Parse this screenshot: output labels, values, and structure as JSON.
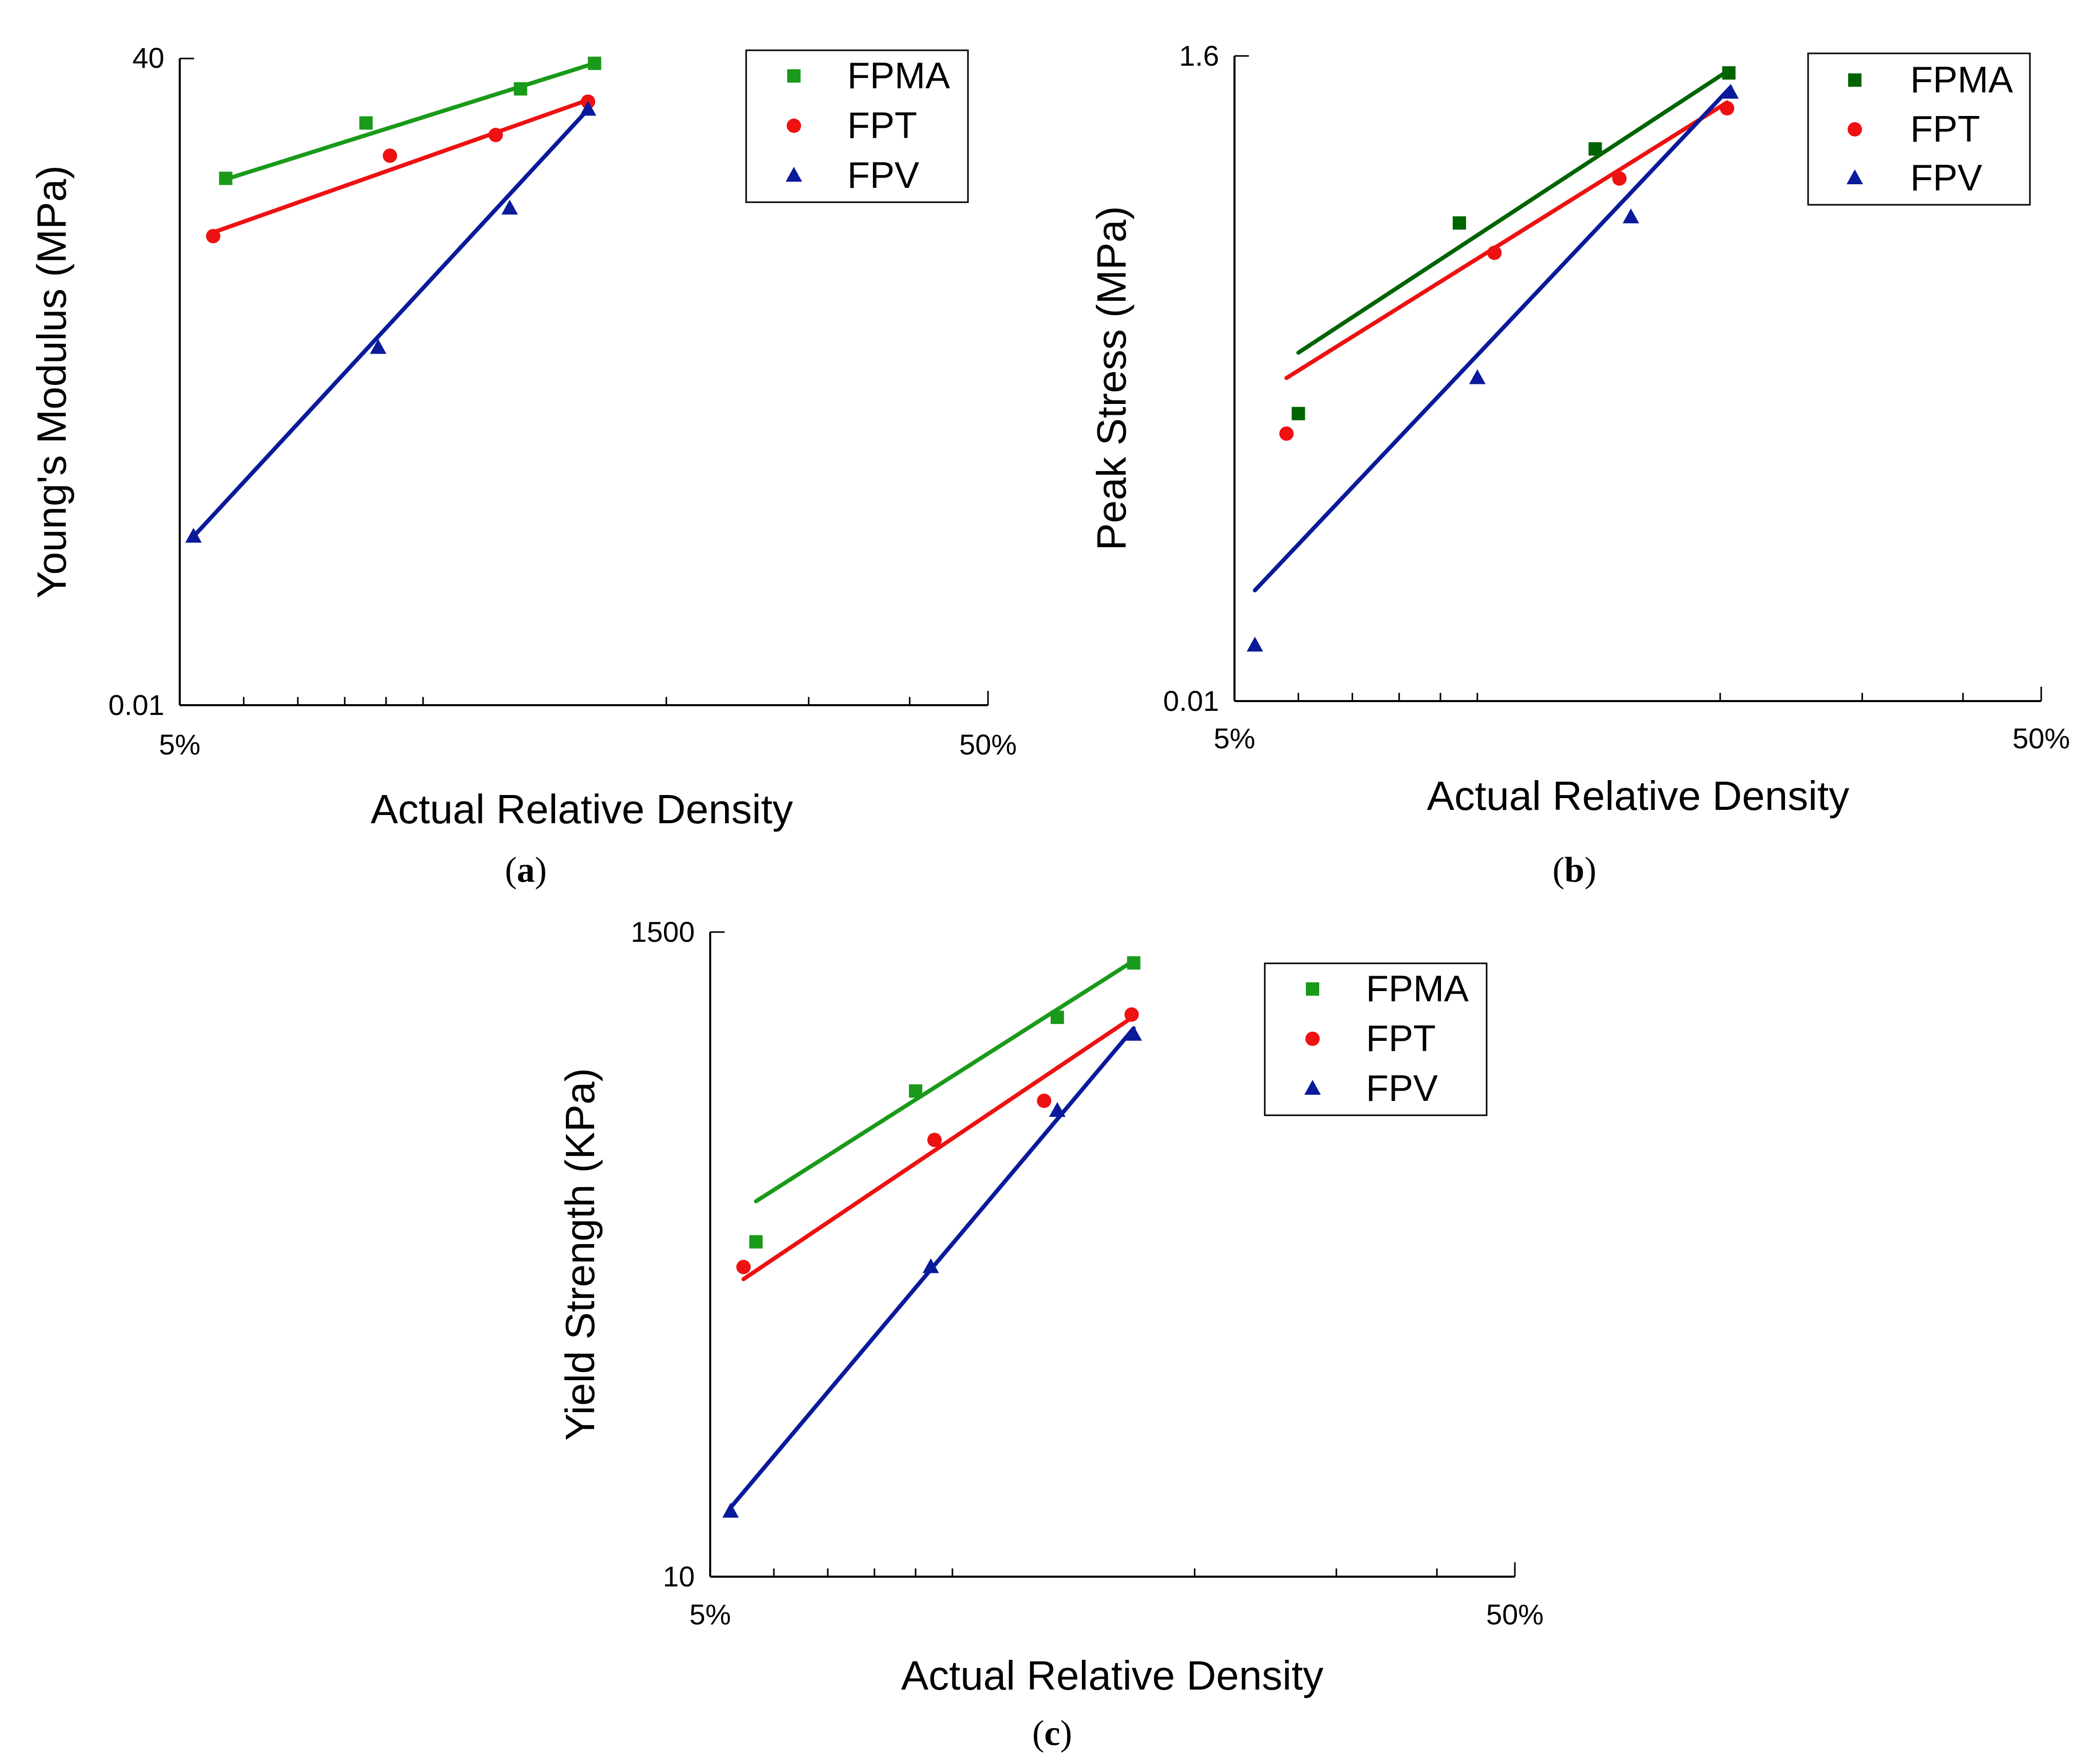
{
  "figure": {
    "panels": [
      {
        "label_open": "(",
        "label_letter": "a",
        "label_close": ")"
      },
      {
        "label_open": "(",
        "label_letter": "b",
        "label_close": ")"
      },
      {
        "label_open": "(",
        "label_letter": "c",
        "label_close": ")"
      }
    ]
  },
  "colors": {
    "FPMA_a": "#1a9a1a",
    "FPMA_b": "#006400",
    "FPMA_c": "#1a9a1a",
    "FPT": "#ee1111",
    "FPV": "#0a1a9a"
  },
  "chart_data": [
    {
      "type": "scatter",
      "title": "",
      "xlabel": "Actual Relative Density",
      "ylabel": "Young's Modulus (MPa)",
      "xscale": "log",
      "yscale": "log",
      "xlim": [
        5,
        50
      ],
      "ylim": [
        0.01,
        40
      ],
      "xtick_labels": [
        "5%",
        "50%"
      ],
      "ytick_labels": [
        "40",
        "0.01"
      ],
      "legend_position": "top-right",
      "series": [
        {
          "name": "FPMA",
          "marker": "square",
          "points": [
            [
              5.7,
              8.6
            ],
            [
              8.5,
              17.5
            ],
            [
              13.2,
              27.1
            ],
            [
              16.3,
              37.6
            ]
          ],
          "fit": [
            [
              5.7,
              8.5
            ],
            [
              16.3,
              37.6
            ]
          ]
        },
        {
          "name": "FPT",
          "marker": "circle",
          "points": [
            [
              5.5,
              4.1
            ],
            [
              9.1,
              11.5
            ],
            [
              12.3,
              15.0
            ],
            [
              16.0,
              23.0
            ]
          ],
          "fit": [
            [
              5.5,
              4.3
            ],
            [
              16.0,
              23.5
            ]
          ]
        },
        {
          "name": "FPV",
          "marker": "triangle",
          "points": [
            [
              5.2,
              0.087
            ],
            [
              8.8,
              0.98
            ],
            [
              12.8,
              5.85
            ],
            [
              16.0,
              20.8
            ]
          ],
          "fit": [
            [
              5.2,
              0.087
            ],
            [
              16.0,
              20.8
            ]
          ]
        }
      ]
    },
    {
      "type": "scatter",
      "title": "",
      "xlabel": "Actual Relative Density",
      "ylabel": "Peak Stress (MPa)",
      "xscale": "log",
      "yscale": "log",
      "xlim": [
        5,
        50
      ],
      "ylim": [
        0.01,
        1.6
      ],
      "xtick_labels": [
        "5%",
        "50%"
      ],
      "ytick_labels": [
        "1.6",
        "0.01"
      ],
      "legend_position": "top-right",
      "series": [
        {
          "name": "FPMA",
          "marker": "square",
          "points": [
            [
              6.0,
              0.096
            ],
            [
              9.5,
              0.43
            ],
            [
              14.0,
              0.77
            ],
            [
              20.5,
              1.4
            ]
          ],
          "fit": [
            [
              6.0,
              0.155
            ],
            [
              20.5,
              1.43
            ]
          ]
        },
        {
          "name": "FPT",
          "marker": "circle",
          "points": [
            [
              5.8,
              0.082
            ],
            [
              10.5,
              0.34
            ],
            [
              15.0,
              0.61
            ],
            [
              20.4,
              1.06
            ]
          ],
          "fit": [
            [
              5.8,
              0.127
            ],
            [
              20.4,
              1.11
            ]
          ]
        },
        {
          "name": "FPV",
          "marker": "triangle",
          "points": [
            [
              5.3,
              0.0155
            ],
            [
              10.0,
              0.127
            ],
            [
              15.5,
              0.45
            ],
            [
              20.6,
              1.2
            ]
          ],
          "fit": [
            [
              5.3,
              0.0239
            ],
            [
              20.6,
              1.25
            ]
          ]
        }
      ]
    },
    {
      "type": "scatter",
      "title": "",
      "xlabel": "Actual Relative Density",
      "ylabel": "Yield Strength (KPa)",
      "xscale": "log",
      "yscale": "log",
      "xlim": [
        5,
        50
      ],
      "ylim": [
        10,
        1500
      ],
      "xtick_labels": [
        "5%",
        "50%"
      ],
      "ytick_labels": [
        "1500",
        "10"
      ],
      "legend_position": "top-right",
      "series": [
        {
          "name": "FPMA",
          "marker": "square",
          "points": [
            [
              5.7,
              135
            ],
            [
              9.0,
              436
            ],
            [
              13.5,
              773
            ],
            [
              16.8,
              1180
            ]
          ],
          "fit": [
            [
              5.7,
              185
            ],
            [
              16.8,
              1200
            ]
          ]
        },
        {
          "name": "FPT",
          "marker": "circle",
          "points": [
            [
              5.5,
              111
            ],
            [
              9.5,
              298
            ],
            [
              13.0,
              404
            ],
            [
              16.7,
              790
            ]
          ],
          "fit": [
            [
              5.5,
              101
            ],
            [
              16.7,
              770
            ]
          ]
        },
        {
          "name": "FPV",
          "marker": "triangle",
          "points": [
            [
              5.3,
              16.6
            ],
            [
              9.4,
              111
            ],
            [
              13.5,
              374
            ],
            [
              16.8,
              676
            ]
          ],
          "fit": [
            [
              5.3,
              17.1
            ],
            [
              16.8,
              710
            ]
          ]
        }
      ]
    }
  ]
}
